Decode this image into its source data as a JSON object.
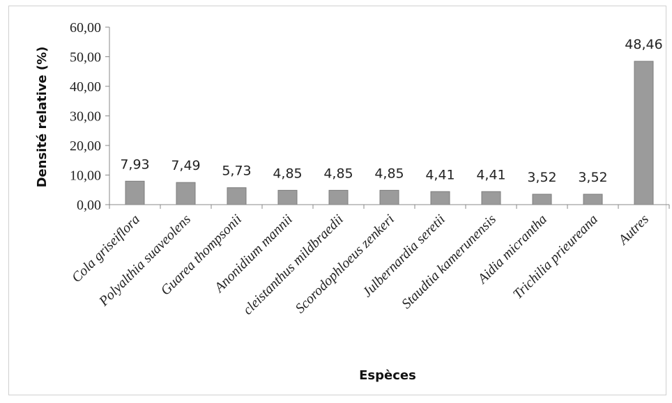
{
  "chart_data": {
    "type": "bar",
    "title": "",
    "xlabel": "Espèces",
    "ylabel": "Densité relative (%)",
    "ylim": [
      0,
      60
    ],
    "yticks": [
      "0,00",
      "10,00",
      "20,00",
      "30,00",
      "40,00",
      "50,00",
      "60,00"
    ],
    "grid": false,
    "bar_color": "#9b9b9b",
    "categories": [
      "Cola griseiflora",
      "Polyalthia suaveolens",
      "Guarea thompsonii",
      "Anonidium mannii",
      "cleistanthus mildbraedii",
      "Scorodophloeus zenkeri",
      "Julbernardia seretii",
      "Staudtia kamerunensis",
      "Aidia micrantha",
      "Trichilia prieureana",
      "Autres"
    ],
    "values": [
      7.93,
      7.49,
      5.73,
      4.85,
      4.85,
      4.85,
      4.41,
      4.41,
      3.52,
      3.52,
      48.46
    ],
    "value_labels": [
      "7,93",
      "7,49",
      "5,73",
      "4,85",
      "4,85",
      "4,85",
      "4,41",
      "4,41",
      "3,52",
      "3,52",
      "48,46"
    ]
  }
}
